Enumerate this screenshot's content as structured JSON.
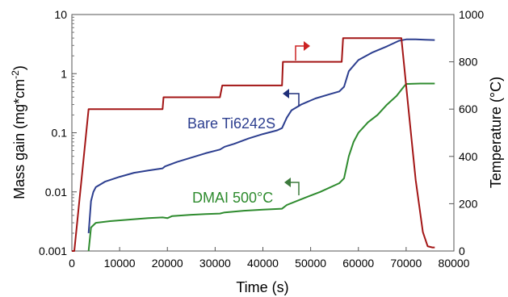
{
  "chart_data": {
    "type": "line",
    "xlabel": "Time (s)",
    "ylabel_left": "Mass gain (mg*cm",
    "ylabel_left_sup": "-2",
    "ylabel_left_end": ")",
    "ylabel_right": "Temperature (°C)",
    "xlim": [
      0,
      80000
    ],
    "ylim_left": [
      0.001,
      10
    ],
    "y_left_scale": "log",
    "ylim_right": [
      0,
      1000
    ],
    "x_ticks": [
      "0",
      "10000",
      "20000",
      "30000",
      "40000",
      "50000",
      "60000",
      "70000",
      "80000"
    ],
    "y_left_ticks": [
      "0.001",
      "0.01",
      "0.1",
      "1",
      "10"
    ],
    "y_right_ticks": [
      "0",
      "200",
      "400",
      "600",
      "800",
      "1000"
    ],
    "grid": false,
    "series": [
      {
        "name": "Bare Ti6242S",
        "axis": "left",
        "color": "#2c3e8f",
        "label_arrow_color": "#1f2f7a",
        "points": [
          [
            3500,
            0.002
          ],
          [
            4000,
            0.007
          ],
          [
            4500,
            0.01
          ],
          [
            5000,
            0.012
          ],
          [
            7000,
            0.015
          ],
          [
            10000,
            0.018
          ],
          [
            13000,
            0.021
          ],
          [
            16000,
            0.023
          ],
          [
            19000,
            0.025
          ],
          [
            19500,
            0.027
          ],
          [
            22000,
            0.032
          ],
          [
            25000,
            0.038
          ],
          [
            28000,
            0.045
          ],
          [
            31000,
            0.052
          ],
          [
            32000,
            0.058
          ],
          [
            34000,
            0.065
          ],
          [
            37000,
            0.08
          ],
          [
            40000,
            0.095
          ],
          [
            43000,
            0.11
          ],
          [
            44000,
            0.12
          ],
          [
            45000,
            0.18
          ],
          [
            46000,
            0.24
          ],
          [
            48000,
            0.3
          ],
          [
            51000,
            0.38
          ],
          [
            54000,
            0.45
          ],
          [
            56000,
            0.5
          ],
          [
            57000,
            0.6
          ],
          [
            58000,
            1.1
          ],
          [
            60000,
            1.7
          ],
          [
            63000,
            2.3
          ],
          [
            66000,
            2.9
          ],
          [
            68500,
            3.6
          ],
          [
            70000,
            3.8
          ],
          [
            72000,
            3.8
          ],
          [
            74000,
            3.75
          ],
          [
            76000,
            3.7
          ]
        ]
      },
      {
        "name": "DMAI 500°C",
        "axis": "left",
        "color": "#2e8b2e",
        "label_arrow_color": "#3c7a3c",
        "points": [
          [
            3500,
            0.001
          ],
          [
            4000,
            0.0025
          ],
          [
            5000,
            0.003
          ],
          [
            8000,
            0.0032
          ],
          [
            12000,
            0.0034
          ],
          [
            16000,
            0.0036
          ],
          [
            19000,
            0.0037
          ],
          [
            20000,
            0.0036
          ],
          [
            21000,
            0.0039
          ],
          [
            25000,
            0.0041
          ],
          [
            28000,
            0.0042
          ],
          [
            31000,
            0.0043
          ],
          [
            32000,
            0.0045
          ],
          [
            36000,
            0.0048
          ],
          [
            40000,
            0.005
          ],
          [
            44000,
            0.0052
          ],
          [
            45000,
            0.006
          ],
          [
            48000,
            0.0075
          ],
          [
            52000,
            0.01
          ],
          [
            56000,
            0.014
          ],
          [
            57000,
            0.017
          ],
          [
            58000,
            0.04
          ],
          [
            59000,
            0.07
          ],
          [
            60000,
            0.1
          ],
          [
            62000,
            0.15
          ],
          [
            64000,
            0.2
          ],
          [
            66000,
            0.3
          ],
          [
            68000,
            0.42
          ],
          [
            69500,
            0.6
          ],
          [
            70000,
            0.67
          ],
          [
            73000,
            0.68
          ],
          [
            76000,
            0.68
          ]
        ]
      },
      {
        "name": "Temperature",
        "axis": "right",
        "color": "#a31515",
        "label_arrow_color": "#cc2222",
        "points": [
          [
            0,
            0
          ],
          [
            500,
            0
          ],
          [
            3500,
            600
          ],
          [
            19000,
            600
          ],
          [
            19200,
            650
          ],
          [
            31000,
            650
          ],
          [
            31500,
            700
          ],
          [
            44000,
            700
          ],
          [
            44200,
            800
          ],
          [
            56500,
            800
          ],
          [
            56800,
            900
          ],
          [
            69000,
            900
          ],
          [
            70500,
            600
          ],
          [
            72000,
            300
          ],
          [
            73500,
            80
          ],
          [
            74500,
            20
          ],
          [
            75500,
            15
          ],
          [
            76000,
            15
          ]
        ]
      }
    ]
  },
  "labels": {
    "bare": "Bare Ti6242S",
    "dmai": "DMAI 500°C"
  }
}
